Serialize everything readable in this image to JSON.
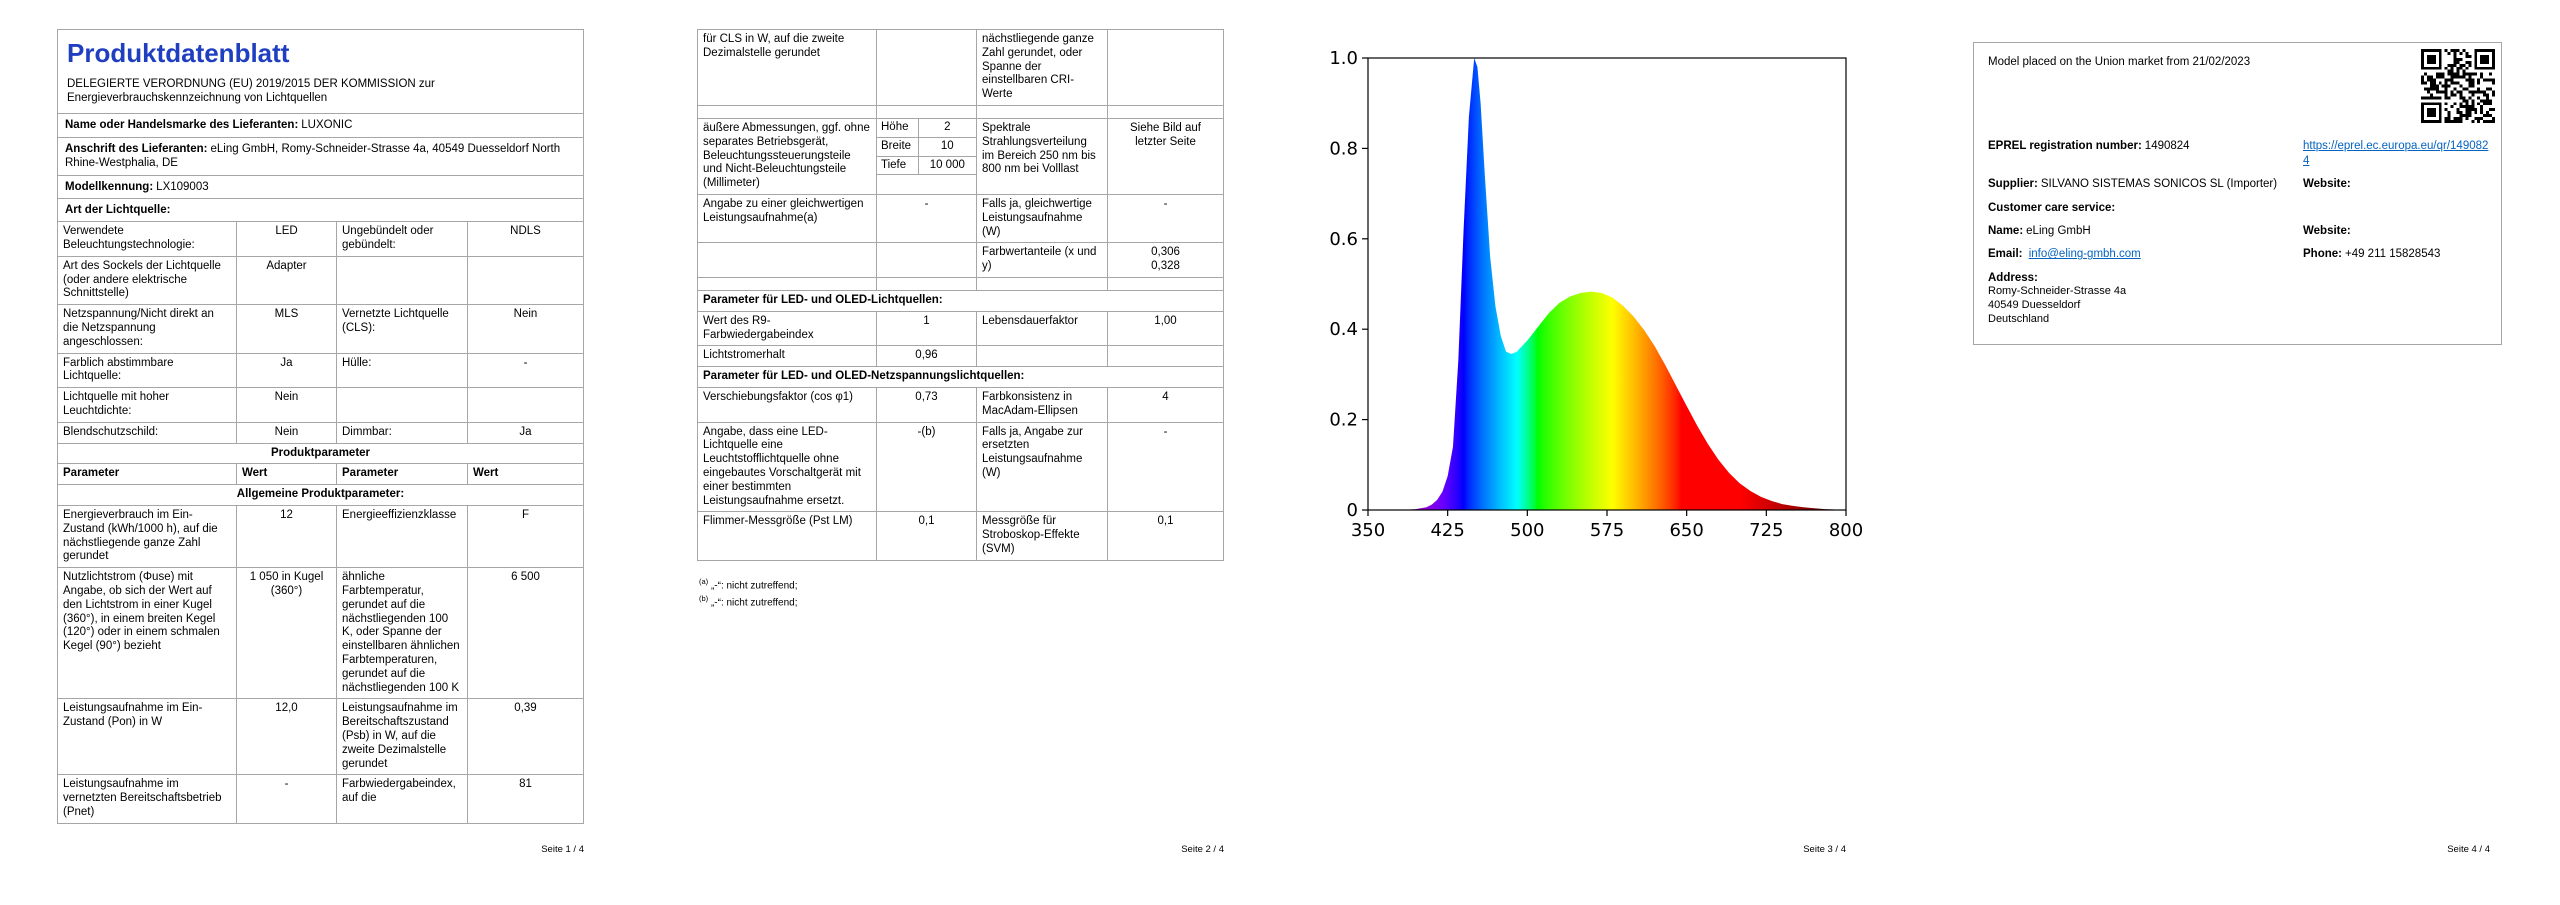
{
  "colors": {
    "title_blue": "#1f3fc0",
    "link_blue": "#0563c1",
    "table_border": "#a6a6a6",
    "chart_frame": "#000000",
    "text": "#000000",
    "background": "#ffffff"
  },
  "page1": {
    "title": "Produktdatenblatt",
    "regulation_line1": "DELEGIERTE VERORDNUNG (EU) 2019/2015 DER KOMMISSION zur",
    "regulation_line2": "Energieverbrauchskennzeichnung von Lichtquellen",
    "info_rows": [
      {
        "label": "Name oder Handelsmarke des Lieferanten:",
        "value": "LUXONIC"
      },
      {
        "label": "Anschrift des Lieferanten:",
        "value": "eLing GmbH, Romy-Schneider-Strasse 4a, 40549 Duesseldorf North Rhine-Westphalia, DE"
      },
      {
        "label": "Modellkennung:",
        "value": "LX109003"
      },
      {
        "label": "Art der Lichtquelle:",
        "value": ""
      }
    ],
    "light_type_rows": [
      {
        "p1": "Verwendete Beleuchtungstechnologie:",
        "v1": "LED",
        "p2": "Ungebündelt oder gebündelt:",
        "v2": "NDLS"
      },
      {
        "p1": "Art des Sockels der Lichtquelle (oder andere elektrische Schnittstelle)",
        "v1": "Adapter",
        "p2": "",
        "v2": ""
      },
      {
        "p1": "Netzspannung/Nicht direkt an die Netzspannung angeschlossen:",
        "v1": "MLS",
        "p2": "Vernetzte Lichtquelle (CLS):",
        "v2": "Nein"
      },
      {
        "p1": "Farblich abstimmbare Lichtquelle:",
        "v1": "Ja",
        "p2": "Hülle:",
        "v2": "-"
      },
      {
        "p1": "Lichtquelle mit hoher Leuchtdichte:",
        "v1": "Nein",
        "p2": "",
        "v2": ""
      },
      {
        "p1": "Blendschutzschild:",
        "v1": "Nein",
        "p2": "Dimmbar:",
        "v2": "Ja"
      }
    ],
    "product_param_header": "Produktparameter",
    "column_headers": [
      "Parameter",
      "Wert",
      "Parameter",
      "Wert"
    ],
    "general_header": "Allgemeine Produktparameter:",
    "param_rows": [
      {
        "p1": "Energieverbrauch im Ein-Zustand (kWh/1000 h), auf die nächstliegende ganze Zahl gerundet",
        "v1": "12",
        "p2": "Energieeffizienzklasse",
        "v2": "F"
      },
      {
        "p1": "Nutzlichtstrom (Φuse) mit Angabe, ob sich der Wert auf den Lichtstrom in einer Kugel (360°), in einem breiten Kegel (120°) oder in einem schmalen Kegel (90°) bezieht",
        "v1": "1 050 in Kugel (360°)",
        "p2": "ähnliche Farbtemperatur, gerundet auf die nächstliegenden 100 K, oder Spanne der einstellbaren ähnlichen Farbtemperaturen, gerundet auf die nächstliegenden 100 K",
        "v2": "6 500"
      },
      {
        "p1": "Leistungsaufnahme im Ein-Zustand (Pon) in W",
        "v1": "12,0",
        "p2": "Leistungsaufnahme im Bereitschaftszustand (Psb) in W, auf die zweite Dezimalstelle gerundet",
        "v2": "0,39"
      },
      {
        "p1": "Leistungsaufnahme im vernetzten Bereitschaftsbetrieb (Pnet)",
        "v1": "-",
        "p2": "Farbwiedergabeindex, auf die",
        "v2": "81"
      }
    ],
    "footer": "Seite 1 / 4"
  },
  "page2": {
    "rows": [
      {
        "type": "row",
        "p1": "für CLS in W, auf die zweite Dezimalstelle gerundet",
        "v1": "",
        "p2": "nächstliegende ganze Zahl gerundet, oder Spanne der einstellbaren CRI-Werte",
        "v2": ""
      },
      {
        "type": "row",
        "p1": "",
        "v1": "",
        "p2": "",
        "v2": ""
      },
      {
        "type": "dims",
        "p1": "äußere Abmessungen, ggf. ohne separates Betriebsgerät, Beleuchtungssteuerungsteile und Nicht-Beleuchtungsteile (Millimeter)",
        "dims": [
          {
            "label": "Höhe",
            "value": "2"
          },
          {
            "label": "Breite",
            "value": "10"
          },
          {
            "label": "Tiefe",
            "value": "10 000"
          }
        ],
        "p2": "Spektrale Strahlungsverteilung im Bereich 250 nm bis 800 nm bei Volllast",
        "v2": "Siehe Bild auf letzter Seite"
      },
      {
        "type": "row",
        "p1": "Angabe zu einer gleichwertigen Leistungsaufnahme(a)",
        "v1": "-",
        "p2": "Falls ja, gleichwertige Leistungsaufnahme (W)",
        "v2": "-"
      },
      {
        "type": "row",
        "p1": "",
        "v1": "",
        "p2": "Farbwertanteile (x und y)",
        "v2": "0,306\n0,328"
      },
      {
        "type": "row",
        "p1": "",
        "v1": "",
        "p2": "",
        "v2": ""
      },
      {
        "type": "section",
        "label": "Parameter für LED- und OLED-Lichtquellen:"
      },
      {
        "type": "row",
        "p1": "Wert des R9-Farbwiedergabeindex",
        "v1": "1",
        "p2": "Lebensdauerfaktor",
        "v2": "1,00"
      },
      {
        "type": "row",
        "p1": "Lichtstromerhalt",
        "v1": "0,96",
        "p2": "",
        "v2": ""
      },
      {
        "type": "section",
        "label": "Parameter für LED- und OLED-Netzspannungslichtquellen:"
      },
      {
        "type": "row",
        "p1": "Verschiebungsfaktor (cos φ1)",
        "v1": "0,73",
        "p2": "Farbkonsistenz in MacAdam-Ellipsen",
        "v2": "4"
      },
      {
        "type": "row",
        "p1": "Angabe, dass eine LED-Lichtquelle eine Leuchtstofflichtquelle ohne eingebautes Vorschaltgerät mit einer bestimmten Leistungsaufnahme ersetzt.",
        "v1": "-(b)",
        "p2": "Falls ja, Angabe zur ersetzten Leistungsaufnahme (W)",
        "v2": "-"
      },
      {
        "type": "row",
        "p1": "Flimmer-Messgröße (Pst LM)",
        "v1": "0,1",
        "p2": "Messgröße für Stroboskop-Effekte (SVM)",
        "v2": "0,1"
      }
    ],
    "footnotes": [
      {
        "marker": "(a)",
        "text": "„-“: nicht zutreffend;"
      },
      {
        "marker": "(b)",
        "text": "„-“: nicht zutreffend;"
      }
    ],
    "footer": "Seite 2 / 4"
  },
  "page3": {
    "footer": "Seite 3 / 4"
  },
  "chart_data": {
    "type": "area",
    "title": "",
    "xlabel": "",
    "ylabel": "",
    "xlim": [
      350,
      800
    ],
    "ylim": [
      0,
      1.0
    ],
    "x_ticks": [
      350,
      425,
      500,
      575,
      650,
      725,
      800
    ],
    "y_ticks": [
      0,
      0.2,
      0.4,
      0.6,
      0.8,
      1.0
    ],
    "grid": false,
    "legend": false,
    "fill": "wavelength-rainbow",
    "x": [
      350,
      380,
      395,
      405,
      410,
      415,
      420,
      425,
      430,
      435,
      440,
      445,
      450,
      453,
      456,
      460,
      465,
      470,
      475,
      480,
      485,
      490,
      500,
      510,
      520,
      530,
      540,
      550,
      560,
      570,
      580,
      590,
      600,
      610,
      620,
      630,
      640,
      650,
      660,
      670,
      680,
      690,
      700,
      710,
      720,
      730,
      740,
      750,
      760,
      770,
      780,
      790,
      800
    ],
    "y": [
      0,
      0,
      0.002,
      0.006,
      0.012,
      0.022,
      0.04,
      0.075,
      0.14,
      0.33,
      0.62,
      0.87,
      1.0,
      0.98,
      0.9,
      0.74,
      0.56,
      0.45,
      0.385,
      0.35,
      0.345,
      0.35,
      0.375,
      0.405,
      0.435,
      0.458,
      0.472,
      0.48,
      0.483,
      0.48,
      0.47,
      0.452,
      0.428,
      0.398,
      0.362,
      0.32,
      0.275,
      0.23,
      0.186,
      0.146,
      0.111,
      0.082,
      0.059,
      0.042,
      0.029,
      0.02,
      0.013,
      0.009,
      0.006,
      0.004,
      0.002,
      0.001,
      0
    ]
  },
  "page4": {
    "market_line": "Model placed on the Union market from 21/02/2023",
    "eprel_label": "EPREL registration number:",
    "eprel_value": "1490824",
    "eprel_link": "https://eprel.ec.europa.eu/qr/1490824",
    "supplier_label": "Supplier:",
    "supplier_value": "SILVANO SISTEMAS SONICOS SL  (Importer)",
    "website_label_1": "Website:",
    "customer_care_label": "Customer care service:",
    "name_label": "Name:",
    "name_value": "eLing GmbH",
    "website_label_2": "Website:",
    "email_label": "Email:",
    "email_value": "info@eling-gmbh.com",
    "phone_label": "Phone:",
    "phone_value": "+49 211 15828543",
    "address_label": "Address:",
    "address_lines": [
      "Romy-Schneider-Strasse 4a",
      "40549 Duesseldorf",
      "Deutschland"
    ],
    "footer": "Seite 4 / 4"
  }
}
